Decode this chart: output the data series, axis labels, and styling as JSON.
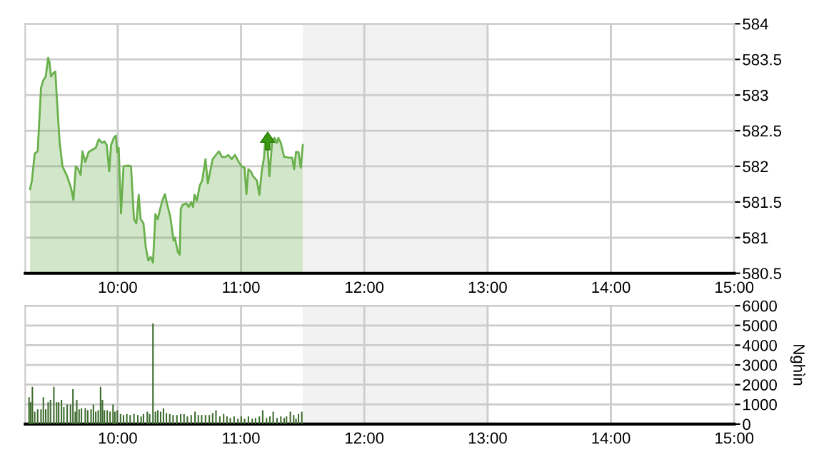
{
  "chart_data": [
    {
      "type": "area",
      "xlim": [
        9.25,
        15
      ],
      "ylim": [
        580.5,
        584
      ],
      "xticks": [
        {
          "value": 10,
          "label": "10:00"
        },
        {
          "value": 11,
          "label": "11:00"
        },
        {
          "value": 12,
          "label": "12:00"
        },
        {
          "value": 13,
          "label": "13:00"
        },
        {
          "value": 14,
          "label": "14:00"
        },
        {
          "value": 15,
          "label": "15:00"
        }
      ],
      "yticks": [
        580.5,
        581,
        581.5,
        582,
        582.5,
        583,
        583.5,
        584
      ],
      "grid": true,
      "bands": [
        {
          "axis": "x",
          "from": 11.5,
          "to": 13,
          "color": "#f2f2f2"
        }
      ],
      "series": [
        {
          "color": "#6ab04c",
          "x": [
            9.289,
            9.304,
            9.327,
            9.351,
            9.378,
            9.397,
            9.416,
            9.436,
            9.447,
            9.459,
            9.474,
            9.494,
            9.505,
            9.528,
            9.552,
            9.59,
            9.621,
            9.641,
            9.66,
            9.679,
            9.699,
            9.714,
            9.737,
            9.764,
            9.791,
            9.822,
            9.846,
            9.873,
            9.892,
            9.911,
            9.931,
            9.946,
            9.969,
            9.985,
            9.996,
            10.008,
            10.027,
            10.047,
            10.085,
            10.108,
            10.132,
            10.151,
            10.17,
            10.186,
            10.209,
            10.228,
            10.248,
            10.267,
            10.286,
            10.306,
            10.325,
            10.344,
            10.364,
            10.383,
            10.402,
            10.426,
            10.453,
            10.464,
            10.487,
            10.503,
            10.511,
            10.526,
            10.557,
            10.576,
            10.596,
            10.611,
            10.623,
            10.642,
            10.665,
            10.685,
            10.712,
            10.731,
            10.75,
            10.77,
            10.797,
            10.82,
            10.847,
            10.874,
            10.897,
            10.924,
            10.951,
            10.982,
            11.006,
            11.029,
            11.044,
            11.06,
            11.079,
            11.098,
            11.129,
            11.149,
            11.168,
            11.187,
            11.199,
            11.214,
            11.23,
            11.253,
            11.272,
            11.292,
            11.303,
            11.323,
            11.35,
            11.369,
            11.388,
            11.415,
            11.431,
            11.446,
            11.466,
            11.485,
            11.501
          ],
          "values": [
            581.68,
            581.8,
            582.18,
            582.21,
            583.1,
            583.21,
            583.26,
            583.52,
            583.46,
            583.26,
            583.3,
            583.33,
            583.0,
            582.36,
            582.0,
            581.86,
            581.7,
            581.53,
            582.0,
            581.96,
            581.88,
            582.21,
            582.06,
            582.2,
            582.23,
            582.26,
            582.38,
            582.33,
            582.35,
            582.3,
            581.93,
            582.3,
            582.4,
            582.43,
            582.2,
            582.26,
            581.34,
            582.0,
            582.01,
            582.0,
            581.26,
            581.2,
            581.6,
            581.26,
            581.2,
            580.86,
            580.68,
            580.73,
            580.65,
            581.33,
            581.26,
            581.4,
            581.53,
            581.61,
            581.46,
            581.3,
            580.96,
            581.0,
            580.8,
            580.76,
            581.4,
            581.46,
            581.48,
            581.43,
            581.5,
            581.43,
            581.6,
            581.52,
            581.73,
            581.8,
            582.1,
            581.76,
            581.93,
            582.1,
            582.16,
            582.21,
            582.13,
            582.13,
            582.16,
            582.1,
            582.16,
            582.06,
            582.0,
            581.98,
            581.61,
            581.96,
            581.93,
            581.86,
            581.8,
            581.6,
            581.93,
            582.13,
            582.43,
            582.33,
            581.86,
            582.36,
            582.4,
            582.33,
            582.4,
            582.33,
            582.13,
            582.13,
            582.12,
            582.12,
            581.96,
            582.2,
            582.2,
            581.98,
            582.3
          ]
        }
      ]
    },
    {
      "type": "bar",
      "xlim": [
        9.25,
        15
      ],
      "ylim": [
        0,
        6000
      ],
      "ylabel": "Nghìn",
      "xticks": [
        {
          "value": 10,
          "label": "10:00"
        },
        {
          "value": 11,
          "label": "11:00"
        },
        {
          "value": 12,
          "label": "12:00"
        },
        {
          "value": 13,
          "label": "13:00"
        },
        {
          "value": 14,
          "label": "14:00"
        },
        {
          "value": 15,
          "label": "15:00"
        }
      ],
      "yticks": [
        0,
        1000,
        2000,
        3000,
        4000,
        5000,
        6000
      ],
      "grid": true,
      "bands": [
        {
          "axis": "x",
          "from": 11.5,
          "to": 13,
          "color": "#f2f2f2"
        }
      ],
      "series": [
        {
          "color": "#3d6b2e",
          "x": [
            9.281,
            9.293,
            9.308,
            9.327,
            9.351,
            9.378,
            9.397,
            9.416,
            9.436,
            9.455,
            9.482,
            9.505,
            9.521,
            9.544,
            9.563,
            9.59,
            9.617,
            9.637,
            9.656,
            9.668,
            9.687,
            9.706,
            9.737,
            9.757,
            9.784,
            9.803,
            9.822,
            9.842,
            9.861,
            9.876,
            9.892,
            9.915,
            9.938,
            9.962,
            9.977,
            9.996,
            10.023,
            10.047,
            10.074,
            10.101,
            10.132,
            10.163,
            10.19,
            10.209,
            10.24,
            10.259,
            10.286,
            10.306,
            10.325,
            10.348,
            10.371,
            10.395,
            10.422,
            10.449,
            10.48,
            10.511,
            10.538,
            10.565,
            10.596,
            10.627,
            10.654,
            10.681,
            10.712,
            10.743,
            10.77,
            10.797,
            10.828,
            10.859,
            10.886,
            10.913,
            10.944,
            10.975,
            11.002,
            11.029,
            11.06,
            11.091,
            11.118,
            11.149,
            11.176,
            11.207,
            11.234,
            11.261,
            11.292,
            11.323,
            11.35,
            11.369,
            11.4,
            11.427,
            11.446,
            11.466,
            11.493
          ],
          "values": [
            1360,
            1110,
            1890,
            630,
            750,
            750,
            1360,
            750,
            1110,
            1230,
            1890,
            1110,
            1110,
            1230,
            870,
            990,
            990,
            1770,
            630,
            1230,
            750,
            800,
            800,
            700,
            750,
            990,
            630,
            700,
            1890,
            1230,
            700,
            700,
            630,
            990,
            630,
            700,
            510,
            460,
            510,
            460,
            510,
            460,
            390,
            510,
            630,
            510,
            5100,
            630,
            700,
            630,
            800,
            560,
            510,
            460,
            460,
            510,
            510,
            390,
            460,
            630,
            460,
            460,
            460,
            460,
            560,
            700,
            390,
            510,
            390,
            310,
            390,
            270,
            390,
            270,
            390,
            270,
            310,
            390,
            700,
            310,
            390,
            630,
            310,
            390,
            310,
            390,
            630,
            460,
            270,
            510,
            630
          ]
        }
      ]
    }
  ]
}
